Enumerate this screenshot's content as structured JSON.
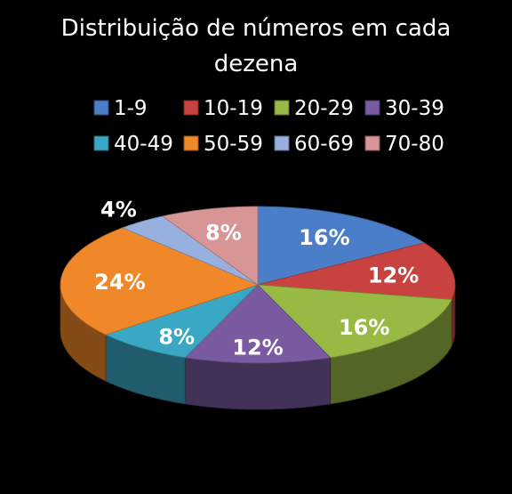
{
  "chart_data": {
    "type": "pie",
    "title": [
      "Distribuição de números em cada",
      "dezena"
    ],
    "categories": [
      "1-9",
      "10-19",
      "20-29",
      "30-39",
      "40-49",
      "50-59",
      "60-69",
      "70-80"
    ],
    "values": [
      16,
      12,
      16,
      12,
      8,
      24,
      4,
      8
    ],
    "data_labels": [
      "16%",
      "12%",
      "16%",
      "12%",
      "8%",
      "24%",
      "4%",
      "8%"
    ],
    "colors": [
      "#4a7ec8",
      "#c8423f",
      "#98ba45",
      "#7a5aa0",
      "#3aa8c4",
      "#f0882a",
      "#98b0de",
      "#d89595"
    ],
    "legend_position": "top",
    "style": "3d-perspective"
  }
}
